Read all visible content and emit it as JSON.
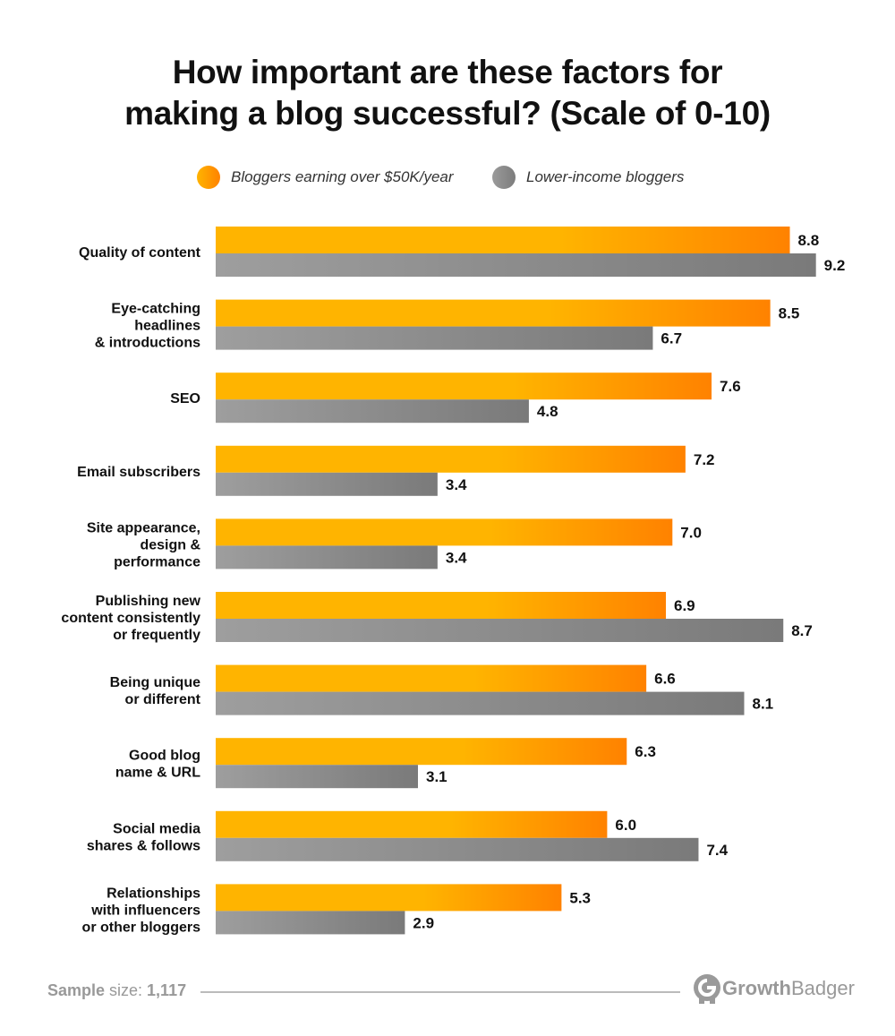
{
  "chart_data": {
    "type": "bar",
    "orientation": "horizontal",
    "title": "How important are these factors for making a blog successful? (Scale of 0-10)",
    "title_lines": [
      "How important are these factors for",
      "making a blog successful? (Scale of 0-10)"
    ],
    "categories": [
      "Quality of content",
      "Eye-catching headlines & introductions",
      "SEO",
      "Email subscribers",
      "Site appearance, design & performance",
      "Publishing new content consistently or frequently",
      "Being unique or different",
      "Good blog name & URL",
      "Social media shares & follows",
      "Relationships with influencers or other bloggers"
    ],
    "category_lines": [
      [
        "Quality of content"
      ],
      [
        "Eye-catching",
        "headlines",
        "& introductions"
      ],
      [
        "SEO"
      ],
      [
        "Email subscribers"
      ],
      [
        "Site appearance,",
        "design &",
        "performance"
      ],
      [
        "Publishing new",
        "content consistently",
        "or frequently"
      ],
      [
        "Being unique",
        "or different"
      ],
      [
        "Good blog",
        "name & URL"
      ],
      [
        "Social media",
        "shares & follows"
      ],
      [
        "Relationships",
        "with influencers",
        "or other bloggers"
      ]
    ],
    "series": [
      {
        "name": "Bloggers earning over $50K/year",
        "color": "#FFB400",
        "color_end": "#FF8200",
        "values": [
          8.8,
          8.5,
          7.6,
          7.2,
          7.0,
          6.9,
          6.6,
          6.3,
          6.0,
          5.3
        ]
      },
      {
        "name": "Lower-income bloggers",
        "color": "#9B9B9B",
        "color_end": "#7C7C7C",
        "values": [
          9.2,
          6.7,
          4.8,
          3.4,
          3.4,
          8.7,
          8.1,
          3.1,
          7.4,
          2.9
        ]
      }
    ],
    "xlim": [
      0,
      10
    ],
    "grid": false,
    "legend": "top-center",
    "data_labels": true
  },
  "footer": {
    "sample_bold": "Sample",
    "sample_rest": " size: ",
    "sample_value": "1,117"
  },
  "logo": {
    "text_bold": "Growth",
    "text_rest": "Badger"
  }
}
